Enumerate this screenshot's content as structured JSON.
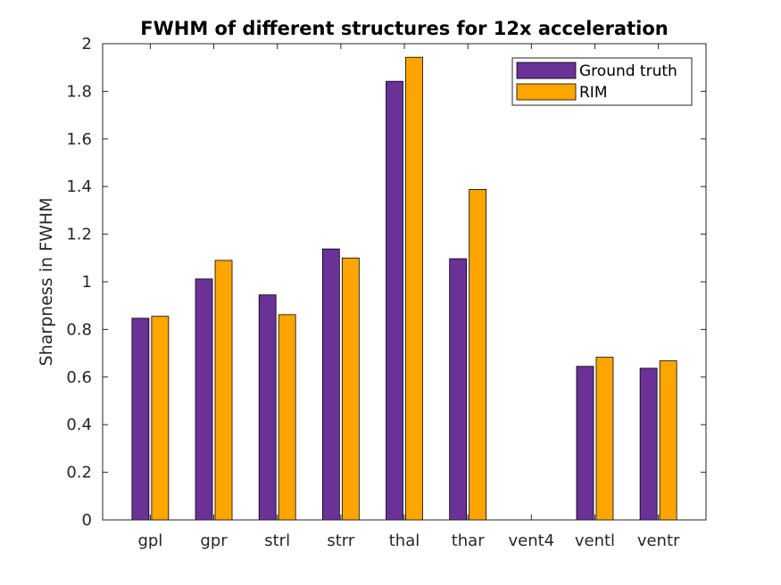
{
  "chart_data": {
    "type": "bar",
    "title": "FWHM of different structures for 12x acceleration",
    "xlabel": "",
    "ylabel": "Sharpness in FWHM",
    "ylim": [
      0,
      2
    ],
    "yticks": [
      "0",
      "0.2",
      "0.4",
      "0.6",
      "0.8",
      "1",
      "1.2",
      "1.4",
      "1.6",
      "1.8",
      "2"
    ],
    "categories": [
      "gpl",
      "gpr",
      "strl",
      "strr",
      "thal",
      "thar",
      "vent4",
      "ventl",
      "ventr"
    ],
    "series": [
      {
        "name": "Ground truth",
        "color": "#6a3197",
        "values": [
          0.847,
          1.012,
          0.945,
          1.138,
          1.842,
          1.097,
          0,
          0.645,
          0.637
        ]
      },
      {
        "name": "RIM",
        "color": "#ffa500",
        "values": [
          0.855,
          1.09,
          0.862,
          1.1,
          1.943,
          1.388,
          0,
          0.683,
          0.668
        ]
      }
    ],
    "legend_position": "top-right",
    "grid": false
  }
}
